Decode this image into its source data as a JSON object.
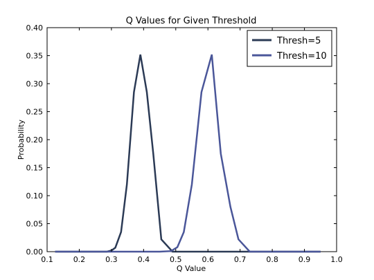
{
  "chart_data": {
    "type": "line",
    "title": "Q Values for Given Threshold",
    "xlabel": "Q Value",
    "ylabel": "Probability",
    "xlim": [
      0.1,
      1.0
    ],
    "ylim": [
      0.0,
      0.4
    ],
    "xticks": [
      "0.1",
      "0.2",
      "0.3",
      "0.4",
      "0.5",
      "0.6",
      "0.7",
      "0.8",
      "0.9",
      "1.0"
    ],
    "yticks": [
      "0.00",
      "0.05",
      "0.10",
      "0.15",
      "0.20",
      "0.25",
      "0.30",
      "0.35",
      "0.40"
    ],
    "grid": false,
    "legend_position": "top-right",
    "series": [
      {
        "name": "Thresh=5",
        "color": "#2b3a55",
        "x": [
          0.125,
          0.25,
          0.286,
          0.3,
          0.312,
          0.33,
          0.348,
          0.37,
          0.39,
          0.41,
          0.43,
          0.455,
          0.49,
          0.55,
          0.7,
          0.95
        ],
        "y": [
          0.0,
          0.0,
          0.0,
          0.002,
          0.007,
          0.035,
          0.12,
          0.285,
          0.352,
          0.285,
          0.175,
          0.022,
          0.0,
          0.0,
          0.0,
          0.0
        ]
      },
      {
        "name": "Thresh=10",
        "color": "#4a5699",
        "x": [
          0.125,
          0.3,
          0.45,
          0.485,
          0.505,
          0.525,
          0.55,
          0.58,
          0.612,
          0.64,
          0.67,
          0.695,
          0.73,
          0.8,
          0.95
        ],
        "y": [
          0.0,
          0.0,
          0.0,
          0.001,
          0.008,
          0.035,
          0.12,
          0.285,
          0.352,
          0.175,
          0.08,
          0.022,
          0.0,
          0.0,
          0.0
        ]
      }
    ]
  }
}
